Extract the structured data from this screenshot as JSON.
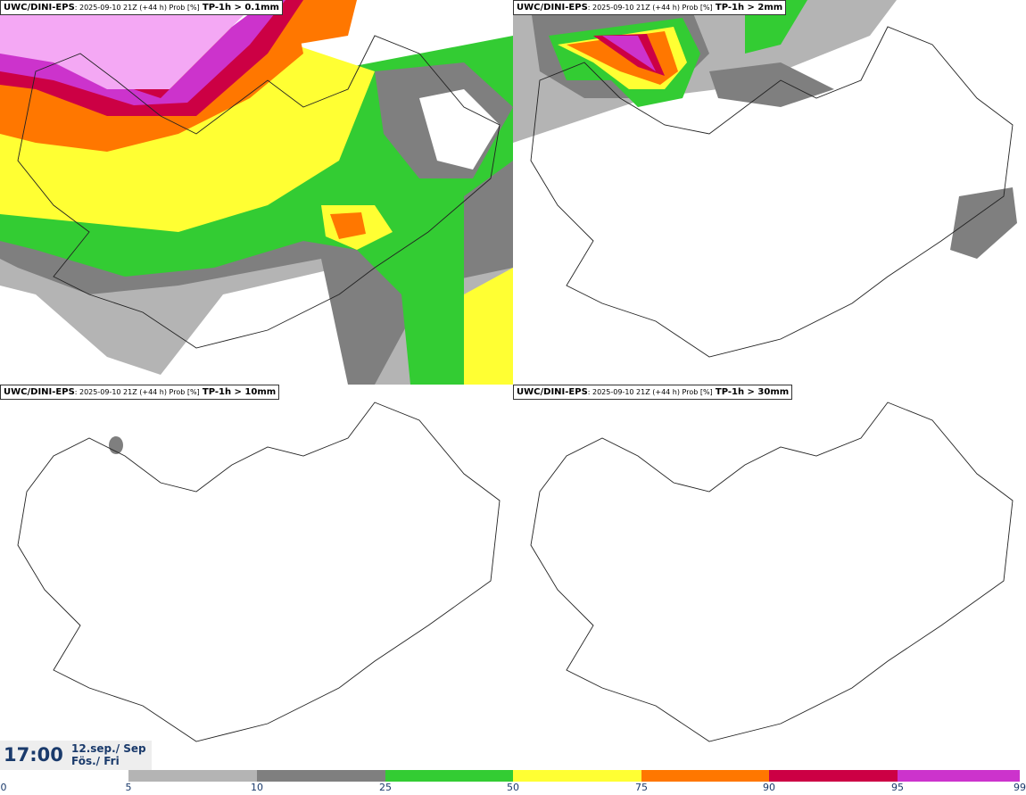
{
  "panels": [
    {
      "source": "UWC/DINI-EPS",
      "meta": ": 2025-09-10 21Z (+44 h) Prob [%]",
      "param": "TP-1h > 0.1mm"
    },
    {
      "source": "UWC/DINI-EPS",
      "meta": ": 2025-09-10 21Z (+44 h) Prob [%]",
      "param": "TP-1h > 2mm"
    },
    {
      "source": "UWC/DINI-EPS",
      "meta": ": 2025-09-10 21Z (+44 h) Prob [%]",
      "param": "TP-1h > 10mm"
    },
    {
      "source": "UWC/DINI-EPS",
      "meta": ": 2025-09-10 21Z (+44 h) Prob [%]",
      "param": "TP-1h > 30mm"
    }
  ],
  "valid_time": {
    "time": "17:00",
    "date_line1": "12.sep./ Sep",
    "date_line2": "Fös./ Fri"
  },
  "colorbar": {
    "ticks": [
      "0",
      "5",
      "10",
      "25",
      "50",
      "75",
      "90",
      "95",
      "99"
    ],
    "colors": [
      "#ffffff",
      "#b4b4b4",
      "#7f7f7f",
      "#33cc33",
      "#ffff33",
      "#ff7700",
      "#cc0044",
      "#cc33cc",
      "#f4a8f4"
    ]
  }
}
